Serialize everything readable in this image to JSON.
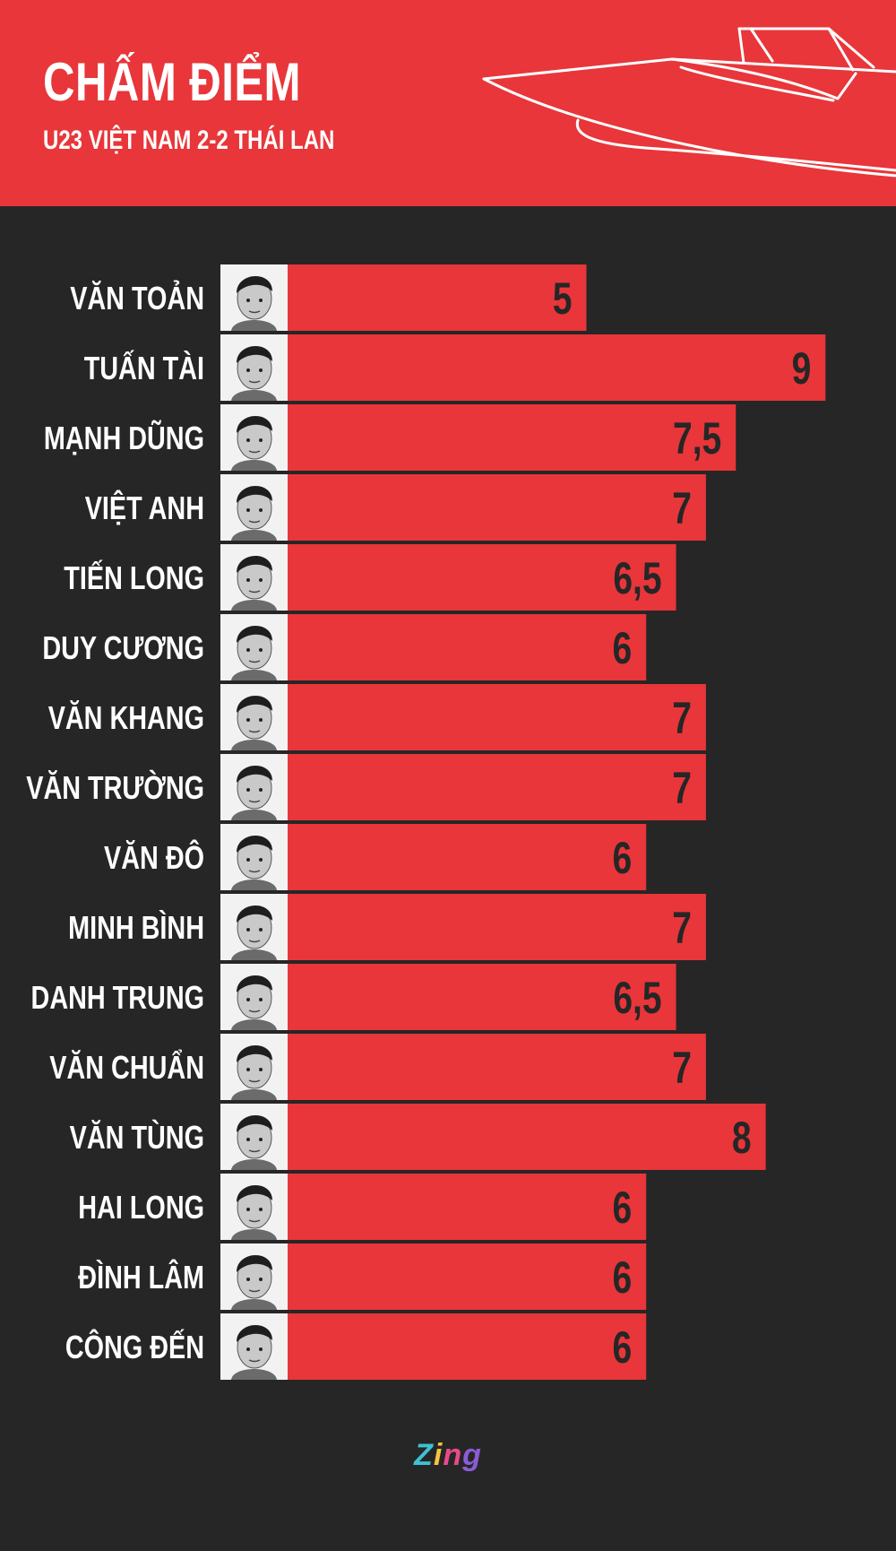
{
  "header": {
    "title": "CHẤM ĐIỂM",
    "subtitle": "U23 VIỆT NAM 2-2 THÁI LAN"
  },
  "colors": {
    "accent": "#e8363a",
    "background": "#262626",
    "text": "#ffffff",
    "value_text": "#262626"
  },
  "chart_data": {
    "type": "bar",
    "orientation": "horizontal",
    "categories": [
      "VĂN TOẢN",
      "TUẤN TÀI",
      "MẠNH DŨNG",
      "VIỆT ANH",
      "TIẾN LONG",
      "DUY CƯƠNG",
      "VĂN KHANG",
      "VĂN TRƯỜNG",
      "VĂN ĐÔ",
      "MINH BÌNH",
      "DANH TRUNG",
      "VĂN CHUẨN",
      "VĂN TÙNG",
      "HAI LONG",
      "ĐÌNH LÂM",
      "CÔNG ĐẾN"
    ],
    "values": [
      5,
      9,
      7.5,
      7,
      6.5,
      6,
      7,
      7,
      6,
      7,
      6.5,
      7,
      8,
      6,
      6,
      6
    ],
    "value_labels": [
      "5",
      "9",
      "7,5",
      "7",
      "6,5",
      "6",
      "7",
      "7",
      "6",
      "7",
      "6,5",
      "7",
      "8",
      "6",
      "6",
      "6"
    ],
    "xlim": [
      0,
      9
    ],
    "grid": false,
    "legend": "none",
    "bar_color": "#e8363a",
    "avatar_icon": "player-portrait-icon"
  },
  "footer": {
    "logo_letters": [
      "Z",
      "i",
      "n",
      "g"
    ],
    "logo_colors": [
      "#3ec1d3",
      "#f6c342",
      "#e84a8a",
      "#8c5bd6"
    ]
  }
}
